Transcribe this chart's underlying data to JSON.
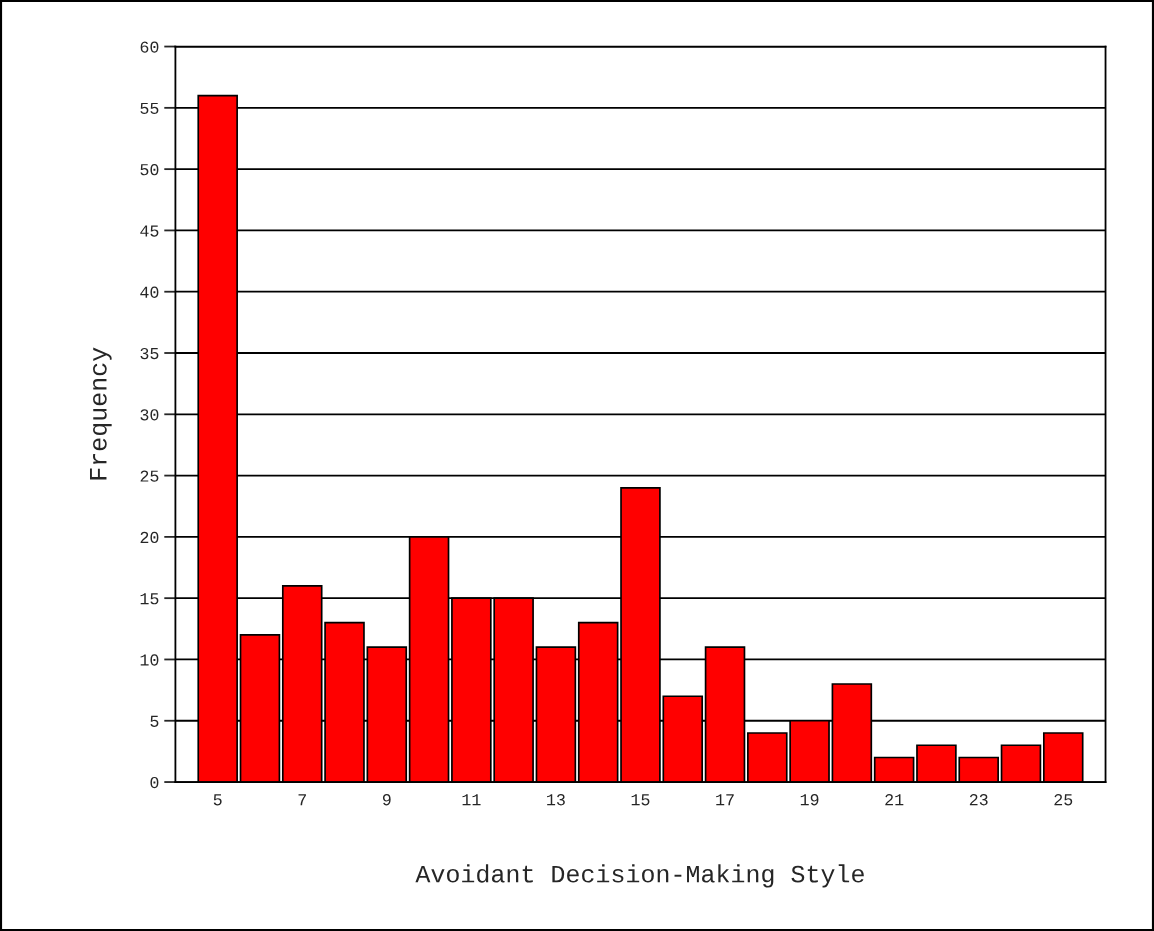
{
  "chart_data": {
    "type": "bar",
    "xlabel": "Avoidant Decision-Making Style",
    "ylabel": "Frequency",
    "x": [
      5,
      6,
      7,
      8,
      9,
      10,
      11,
      12,
      13,
      14,
      15,
      16,
      17,
      18,
      19,
      20,
      21,
      22,
      23,
      24,
      25
    ],
    "values": [
      56,
      12,
      16,
      13,
      11,
      20,
      15,
      15,
      11,
      13,
      24,
      7,
      11,
      4,
      5,
      8,
      2,
      3,
      2,
      3,
      4
    ],
    "color": "#ff0000",
    "xlim": [
      4,
      26
    ],
    "xticks": [
      5,
      7,
      9,
      11,
      13,
      15,
      17,
      19,
      21,
      23,
      25
    ],
    "ylim": [
      0,
      60
    ],
    "yticks": [
      0,
      5,
      10,
      15,
      20,
      25,
      30,
      35,
      40,
      45,
      50,
      55,
      60
    ],
    "grid": "y",
    "legend": false
  }
}
